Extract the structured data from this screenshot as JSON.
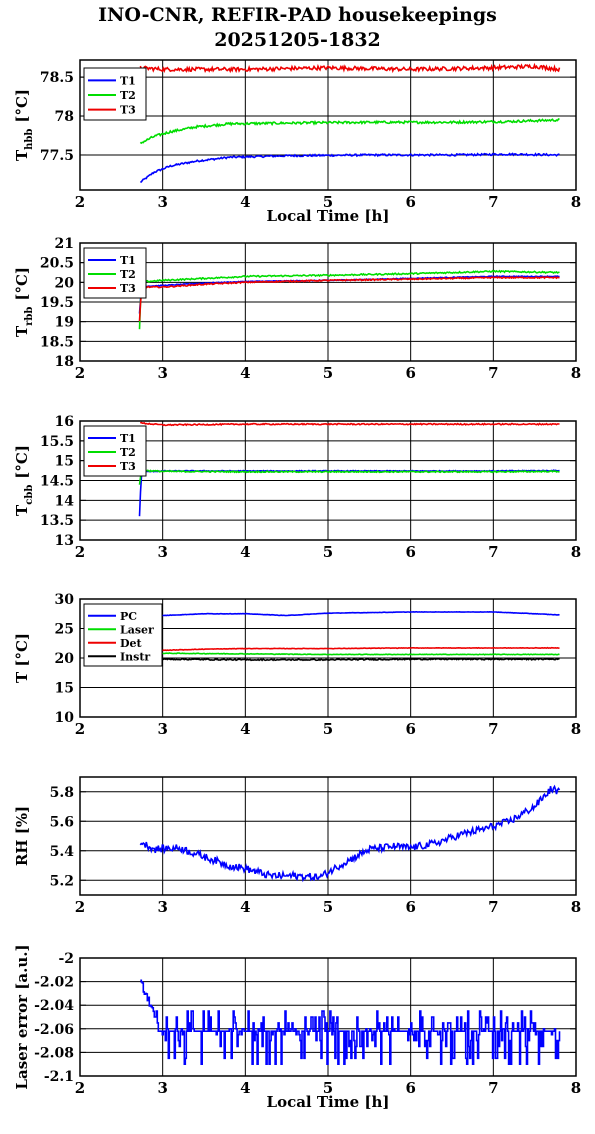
{
  "page": {
    "title_line1": "INO-CNR, REFIR-PAD housekeepings",
    "title_line2": "20251205-1832"
  },
  "chart_data": [
    {
      "type": "line",
      "id": "tbb",
      "ylabel_main": "T",
      "ylabel_sub": "hbb",
      "ylabel_unit": "[°C]",
      "xlabel": "Local Time [h]",
      "xlim": [
        2,
        8
      ],
      "ylim": [
        77.05,
        78.72
      ],
      "yticks": [
        77.5,
        78,
        78.5
      ],
      "ytick_labels": [
        "77.5",
        "78",
        "78.5"
      ],
      "xticks": [
        2,
        3,
        4,
        5,
        6,
        7,
        8
      ],
      "xtick_labels": [
        "2",
        "3",
        "4",
        "5",
        "6",
        "7",
        "8"
      ],
      "legend": "top-left",
      "series": [
        {
          "name": "T1",
          "color": "#0000ff",
          "x": [
            2.73,
            2.9,
            3.1,
            3.4,
            3.8,
            4.5,
            5.5,
            6.5,
            7.2,
            7.8
          ],
          "y": [
            77.15,
            77.28,
            77.36,
            77.42,
            77.47,
            77.49,
            77.5,
            77.5,
            77.51,
            77.5
          ],
          "noise": 0.012
        },
        {
          "name": "T2",
          "color": "#00dd00",
          "x": [
            2.73,
            2.9,
            3.1,
            3.4,
            3.8,
            4.5,
            5.5,
            6.5,
            7.2,
            7.8
          ],
          "y": [
            77.65,
            77.74,
            77.8,
            77.86,
            77.9,
            77.91,
            77.92,
            77.92,
            77.93,
            77.95
          ],
          "noise": 0.015
        },
        {
          "name": "T3",
          "color": "#ee0000",
          "x": [
            2.73,
            3.0,
            4.0,
            5.0,
            6.0,
            7.0,
            7.5,
            7.8
          ],
          "y": [
            78.62,
            78.6,
            78.6,
            78.62,
            78.6,
            78.62,
            78.64,
            78.6
          ],
          "noise": 0.025
        }
      ]
    },
    {
      "type": "line",
      "id": "trbb",
      "ylabel_main": "T",
      "ylabel_sub": "rbb",
      "ylabel_unit": "[°C]",
      "xlabel": "",
      "xlim": [
        2,
        8
      ],
      "ylim": [
        18,
        21
      ],
      "yticks": [
        18,
        18.5,
        19,
        19.5,
        20,
        20.5,
        21
      ],
      "ytick_labels": [
        "18",
        "18.5",
        "19",
        "19.5",
        "20",
        "20.5",
        "21"
      ],
      "xticks": [
        2,
        3,
        4,
        5,
        6,
        7,
        8
      ],
      "xtick_labels": [
        "2",
        "3",
        "4",
        "5",
        "6",
        "7",
        "8"
      ],
      "legend": "top-left",
      "series": [
        {
          "name": "T1",
          "color": "#0000ff",
          "x": [
            2.72,
            2.74,
            2.78,
            3.0,
            3.5,
            4.0,
            5.0,
            6.0,
            7.0,
            7.8
          ],
          "y": [
            19.2,
            19.8,
            19.9,
            19.92,
            19.98,
            20.02,
            20.05,
            20.1,
            20.15,
            20.15
          ],
          "noise": 0.01
        },
        {
          "name": "T2",
          "color": "#00dd00",
          "x": [
            2.72,
            2.74,
            2.78,
            3.0,
            3.5,
            4.0,
            5.0,
            6.0,
            7.0,
            7.8
          ],
          "y": [
            18.8,
            19.95,
            20.02,
            20.05,
            20.1,
            20.15,
            20.18,
            20.22,
            20.28,
            20.25
          ],
          "noise": 0.018
        },
        {
          "name": "T3",
          "color": "#ee0000",
          "x": [
            2.72,
            2.74,
            2.78,
            3.0,
            3.5,
            4.0,
            5.0,
            6.0,
            7.0,
            7.8
          ],
          "y": [
            19.0,
            19.75,
            19.88,
            19.88,
            19.95,
            20.0,
            20.05,
            20.08,
            20.12,
            20.12
          ],
          "noise": 0.015
        }
      ]
    },
    {
      "type": "line",
      "id": "tcbb",
      "ylabel_main": "T",
      "ylabel_sub": "cbb",
      "ylabel_unit": "[°C]",
      "xlabel": "",
      "xlim": [
        2,
        8
      ],
      "ylim": [
        13,
        16
      ],
      "yticks": [
        13,
        13.5,
        14,
        14.5,
        15,
        15.5,
        16
      ],
      "ytick_labels": [
        "13",
        "13.5",
        "14",
        "14.5",
        "15",
        "15.5",
        "16"
      ],
      "xticks": [
        2,
        3,
        4,
        5,
        6,
        7,
        8
      ],
      "xtick_labels": [
        "2",
        "3",
        "4",
        "5",
        "6",
        "7",
        "8"
      ],
      "legend": "top-left",
      "series": [
        {
          "name": "T1",
          "color": "#0000ff",
          "x": [
            2.72,
            2.74,
            2.78,
            3.0,
            4.0,
            5.0,
            6.0,
            7.0,
            7.8
          ],
          "y": [
            13.6,
            14.6,
            14.72,
            14.74,
            14.74,
            14.74,
            14.74,
            14.74,
            14.75
          ],
          "noise": 0.01
        },
        {
          "name": "T2",
          "color": "#00dd00",
          "x": [
            2.72,
            2.74,
            2.78,
            3.0,
            4.0,
            5.0,
            6.0,
            7.0,
            7.8
          ],
          "y": [
            14.4,
            14.7,
            14.75,
            14.73,
            14.72,
            14.72,
            14.72,
            14.72,
            14.73
          ],
          "noise": 0.015
        },
        {
          "name": "T3",
          "color": "#ee0000",
          "x": [
            2.73,
            3.0,
            4.0,
            5.0,
            6.0,
            7.0,
            7.8
          ],
          "y": [
            15.95,
            15.9,
            15.92,
            15.92,
            15.92,
            15.92,
            15.92
          ],
          "noise": 0.015
        }
      ]
    },
    {
      "type": "line",
      "id": "tsys",
      "ylabel_main": "T [°C]",
      "ylabel_sub": "",
      "ylabel_unit": "",
      "xlabel": "",
      "xlim": [
        2,
        8
      ],
      "ylim": [
        10,
        30
      ],
      "yticks": [
        10,
        15,
        20,
        25,
        30
      ],
      "ytick_labels": [
        "10",
        "15",
        "20",
        "25",
        "30"
      ],
      "xticks": [
        2,
        3,
        4,
        5,
        6,
        7,
        8
      ],
      "xtick_labels": [
        "2",
        "3",
        "4",
        "5",
        "6",
        "7",
        "8"
      ],
      "legend": "top-left",
      "series": [
        {
          "name": "PC",
          "color": "#0000ff",
          "x": [
            2.73,
            3.0,
            3.5,
            4.0,
            4.5,
            5.0,
            6.0,
            7.0,
            7.5,
            7.8
          ],
          "y": [
            26.8,
            27.2,
            27.5,
            27.5,
            27.2,
            27.6,
            27.8,
            27.8,
            27.5,
            27.3
          ],
          "noise": 0.03
        },
        {
          "name": "Laser",
          "color": "#00dd00",
          "x": [
            2.73,
            3.0,
            4.0,
            5.0,
            6.0,
            7.0,
            7.8
          ],
          "y": [
            20.9,
            20.8,
            20.7,
            20.6,
            20.6,
            20.6,
            20.6
          ],
          "noise": 0.05
        },
        {
          "name": "Det",
          "color": "#ee0000",
          "x": [
            2.73,
            3.0,
            3.5,
            4.0,
            5.0,
            6.0,
            7.0,
            7.8
          ],
          "y": [
            21.2,
            21.3,
            21.5,
            21.6,
            21.6,
            21.7,
            21.7,
            21.7
          ],
          "noise": 0.04
        },
        {
          "name": "Instr",
          "color": "#000000",
          "x": [
            2.73,
            3.0,
            4.0,
            5.0,
            6.0,
            7.0,
            7.8
          ],
          "y": [
            19.8,
            19.8,
            19.7,
            19.7,
            19.8,
            19.8,
            19.8
          ],
          "noise": 0.1
        }
      ]
    },
    {
      "type": "line",
      "id": "rh",
      "ylabel_main": "RH [%]",
      "ylabel_sub": "",
      "ylabel_unit": "",
      "xlabel": "",
      "xlim": [
        2,
        8
      ],
      "ylim": [
        5.1,
        5.9
      ],
      "yticks": [
        5.2,
        5.4,
        5.6,
        5.8
      ],
      "ytick_labels": [
        "5.2",
        "5.4",
        "5.6",
        "5.8"
      ],
      "xticks": [
        2,
        3,
        4,
        5,
        6,
        7,
        8
      ],
      "xtick_labels": [
        "2",
        "3",
        "4",
        "5",
        "6",
        "7",
        "8"
      ],
      "legend": "none",
      "series": [
        {
          "name": "",
          "color": "#0000ff",
          "x": [
            2.73,
            2.9,
            3.2,
            3.5,
            3.8,
            4.0,
            4.3,
            4.6,
            4.9,
            5.2,
            5.5,
            5.8,
            6.0,
            6.3,
            6.6,
            6.9,
            7.2,
            7.5,
            7.7,
            7.8
          ],
          "y": [
            5.46,
            5.41,
            5.42,
            5.36,
            5.3,
            5.28,
            5.23,
            5.23,
            5.22,
            5.32,
            5.41,
            5.43,
            5.42,
            5.45,
            5.51,
            5.55,
            5.6,
            5.7,
            5.82,
            5.8
          ],
          "noise": 0.025
        }
      ]
    },
    {
      "type": "line",
      "id": "laser",
      "ylabel_main": "Laser error [a.u.]",
      "ylabel_sub": "",
      "ylabel_unit": "",
      "xlabel": "Local Time [h]",
      "xlim": [
        2,
        8
      ],
      "ylim": [
        -2.1,
        -2
      ],
      "yticks": [
        -2.1,
        -2.08,
        -2.06,
        -2.04,
        -2.02,
        -2
      ],
      "ytick_labels": [
        "-2.1",
        "-2.08",
        "-2.06",
        "-2.04",
        "-2.02",
        "-2"
      ],
      "xticks": [
        2,
        3,
        4,
        5,
        6,
        7,
        8
      ],
      "xtick_labels": [
        "2",
        "3",
        "4",
        "5",
        "6",
        "7",
        "8"
      ],
      "legend": "none",
      "series": [
        {
          "name": "",
          "color": "#0000ff",
          "x": [
            2.73,
            2.85,
            3.0,
            4.0,
            5.0,
            6.0,
            7.0,
            7.8
          ],
          "y": [
            -2.02,
            -2.04,
            -2.062,
            -2.065,
            -2.068,
            -2.068,
            -2.068,
            -2.062
          ],
          "noise": 0.0,
          "steps": [
            -2.055,
            -2.06,
            -2.065,
            -2.07,
            -2.075,
            -2.085,
            -2.09,
            -2.05,
            -2.045
          ]
        }
      ]
    }
  ]
}
